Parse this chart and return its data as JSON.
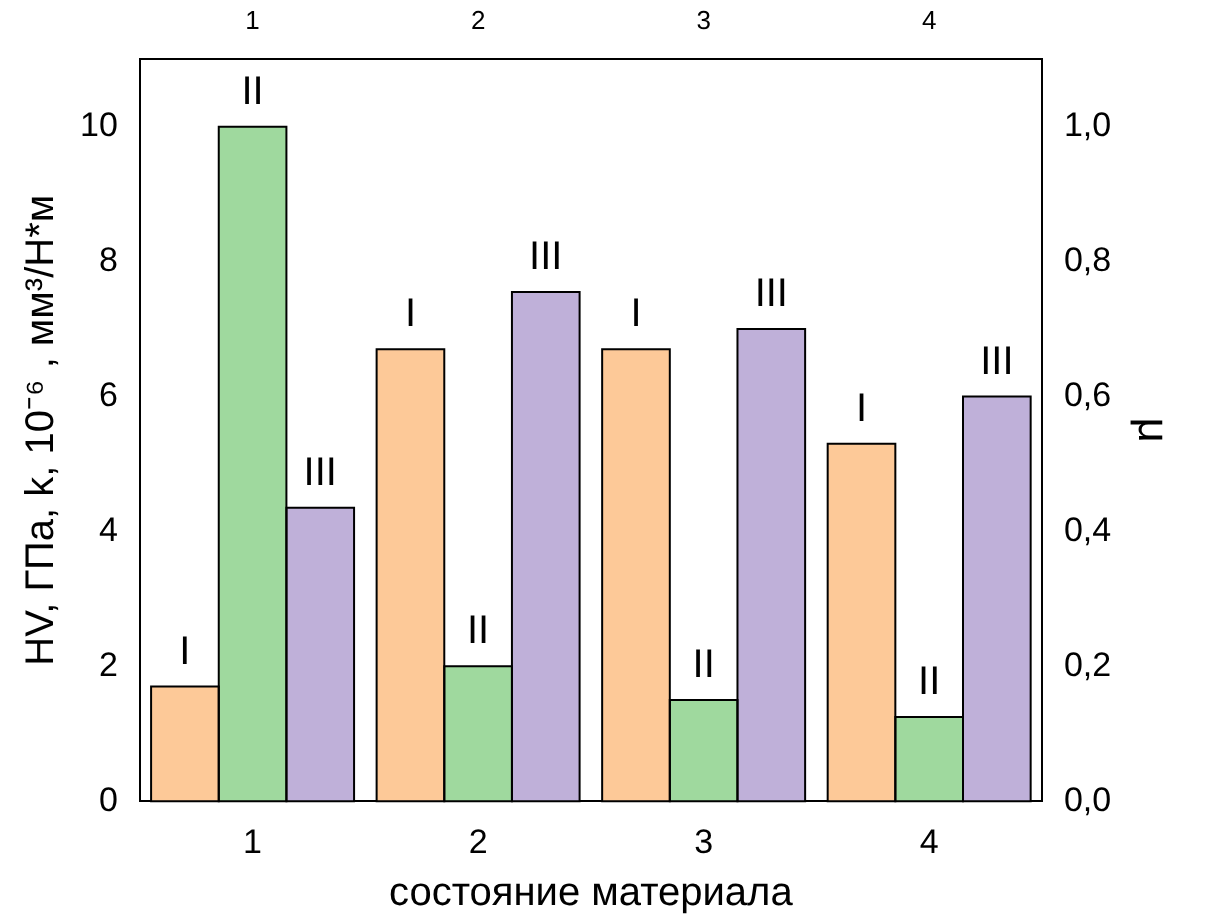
{
  "chart_data": {
    "type": "bar",
    "xlabel": "состояние материала",
    "ylabel": "HV, ГПа, k, 10⁻⁶ , мм³/Н*м",
    "y2label": "μ",
    "categories": [
      "1",
      "2",
      "3",
      "4"
    ],
    "series": [
      {
        "name": "I",
        "color": "#fdc998",
        "values": [
          1.7,
          6.7,
          6.7,
          5.3
        ]
      },
      {
        "name": "II",
        "color": "#9fd99e",
        "values": [
          10.0,
          2.0,
          1.5,
          1.25
        ]
      },
      {
        "name": "III",
        "color": "#bfb0d9",
        "values": [
          4.35,
          7.55,
          7.0,
          6.0
        ]
      }
    ],
    "ylim": [
      0,
      11
    ],
    "yticks": [
      0,
      2,
      4,
      6,
      8,
      10
    ],
    "y2lim": [
      0,
      1.1
    ],
    "y2ticks": [
      {
        "value": 0,
        "label": "0,0"
      },
      {
        "value": 0.2,
        "label": "0,2"
      },
      {
        "value": 0.4,
        "label": "0,4"
      },
      {
        "value": 0.6,
        "label": "0,6"
      },
      {
        "value": 0.8,
        "label": "0,8"
      },
      {
        "value": 1.0,
        "label": "1,0"
      }
    ],
    "grid": false,
    "legend": false
  }
}
